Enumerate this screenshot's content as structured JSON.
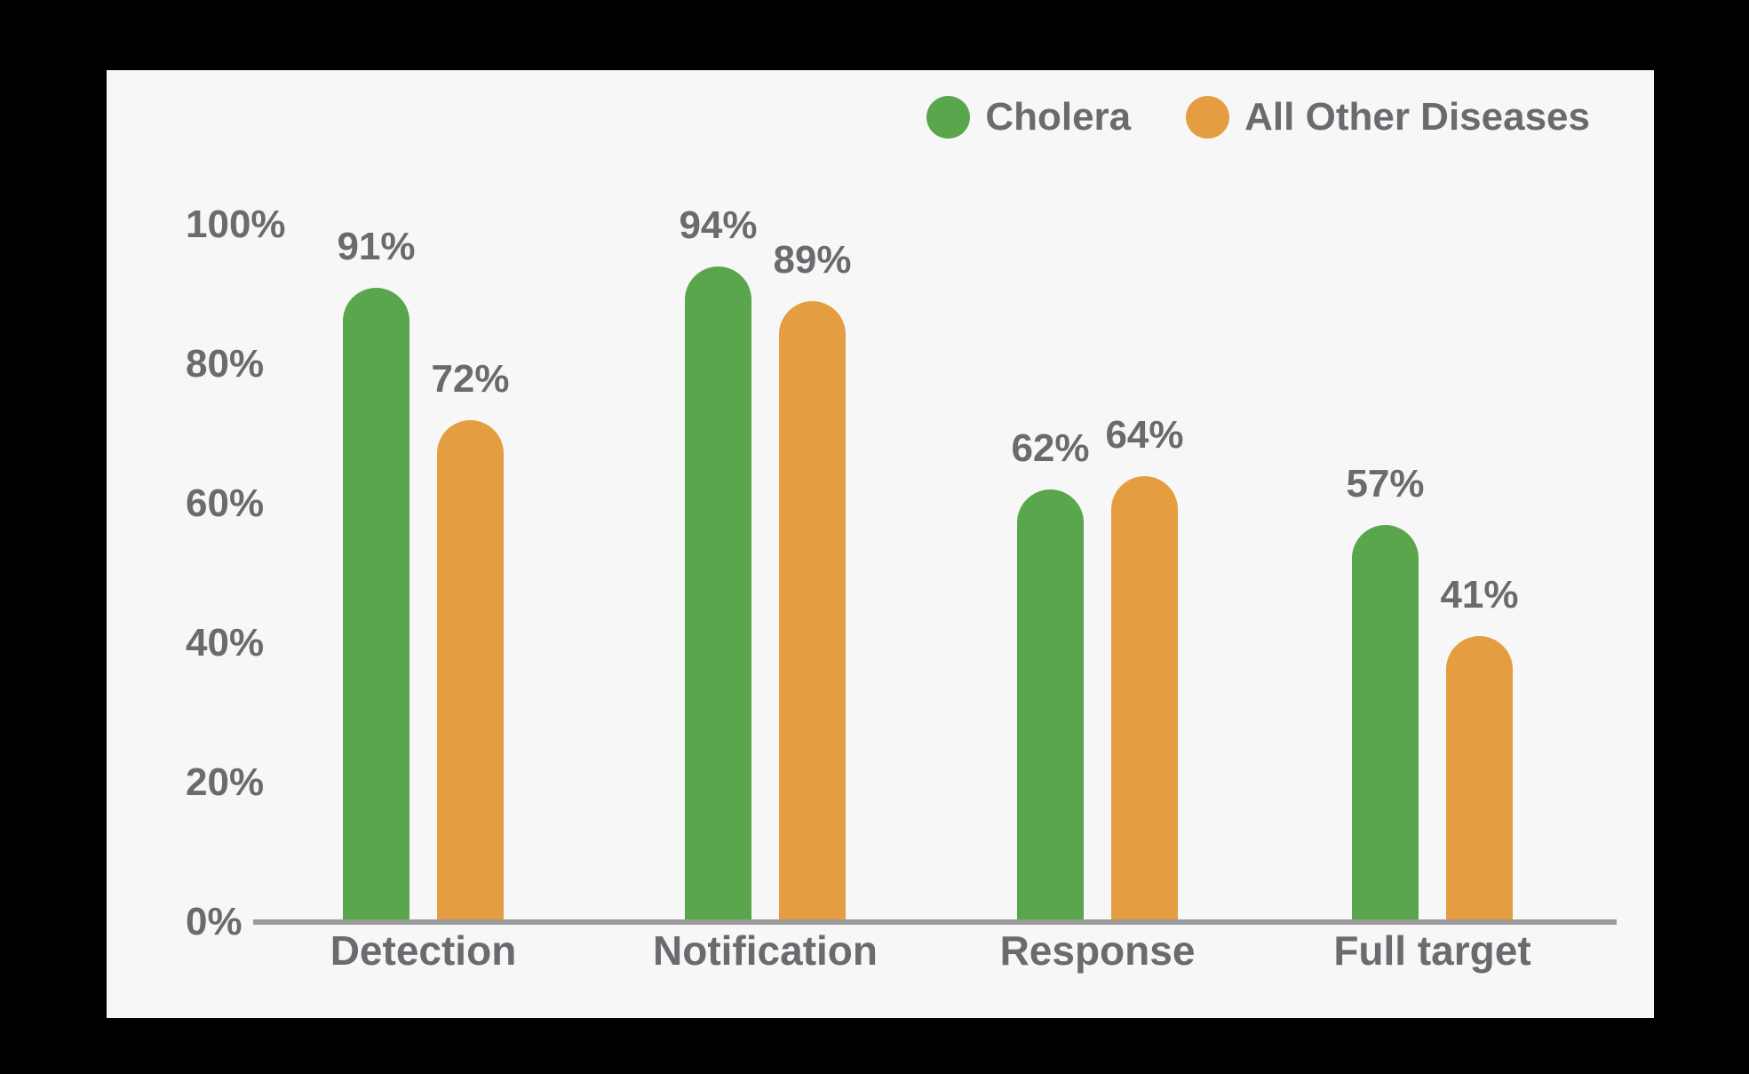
{
  "chart_data": {
    "type": "bar",
    "title": "",
    "categories": [
      "Detection",
      "Notification",
      "Response",
      "Full target"
    ],
    "series": [
      {
        "name": "Cholera",
        "color": "#5aa64c",
        "values": [
          91,
          94,
          62,
          57
        ]
      },
      {
        "name": "All Other Diseases",
        "color": "#e49e41",
        "values": [
          72,
          89,
          64,
          41
        ]
      }
    ],
    "value_labels": [
      [
        "91%",
        "94%",
        "62%",
        "57%"
      ],
      [
        "72%",
        "89%",
        "64%",
        "41%"
      ]
    ],
    "yticks": [
      {
        "pct": 0,
        "label": "0%"
      },
      {
        "pct": 20,
        "label": "20%"
      },
      {
        "pct": 40,
        "label": "40%"
      },
      {
        "pct": 60,
        "label": "60%"
      },
      {
        "pct": 80,
        "label": "80%"
      },
      {
        "pct": 100,
        "label": "100%"
      }
    ],
    "ylim": [
      0,
      100
    ],
    "grid": false,
    "legend_position": "top-right"
  },
  "colors": {
    "page_background": "#000000",
    "panel_background": "#f7f7f7",
    "axis_line": "#9b9b9b",
    "text": "#6a6b6e"
  }
}
